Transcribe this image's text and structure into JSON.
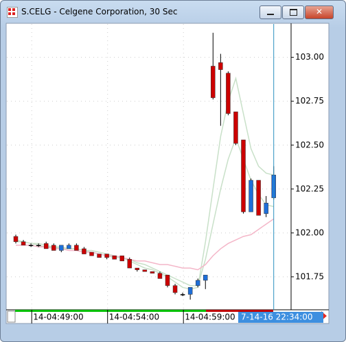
{
  "chart_data": {
    "type": "candlestick",
    "title": "S.CELG - Celgene Corporation, 30 Sec",
    "categories": [
      null,
      null,
      null,
      null,
      null,
      null,
      null,
      null,
      null,
      null,
      null,
      null,
      null,
      null,
      null,
      null,
      null,
      null,
      null,
      null,
      null,
      null,
      null,
      null,
      null,
      null,
      null,
      null,
      null,
      null,
      null,
      null,
      null,
      null,
      null
    ],
    "open": [
      101.98,
      101.95,
      101.93,
      101.93,
      101.94,
      101.93,
      101.9,
      101.91,
      101.93,
      101.91,
      101.89,
      101.88,
      101.88,
      101.87,
      101.87,
      101.85,
      101.8,
      101.79,
      101.78,
      101.77,
      101.76,
      101.7,
      101.65,
      101.65,
      101.7,
      101.73,
      102.95,
      102.97,
      102.91,
      102.69,
      102.53,
      102.12,
      102.3,
      102.11,
      102.2
    ],
    "high": [
      101.99,
      101.96,
      101.94,
      101.94,
      101.95,
      101.94,
      101.93,
      101.94,
      101.94,
      101.92,
      101.89,
      101.88,
      101.88,
      101.87,
      101.87,
      101.86,
      101.8,
      101.79,
      101.78,
      101.78,
      101.76,
      101.71,
      101.66,
      101.69,
      101.74,
      101.76,
      103.14,
      103.02,
      102.92,
      102.69,
      102.53,
      102.31,
      102.3,
      102.21,
      102.38
    ],
    "low": [
      101.94,
      101.93,
      101.92,
      101.92,
      101.91,
      101.9,
      101.89,
      101.91,
      101.9,
      101.88,
      101.87,
      101.86,
      101.85,
      101.85,
      101.84,
      101.8,
      101.78,
      101.78,
      101.77,
      101.74,
      101.69,
      101.65,
      101.64,
      101.62,
      101.69,
      101.68,
      102.76,
      102.61,
      102.67,
      102.5,
      102.11,
      102.12,
      102.1,
      102.09,
      102.19
    ],
    "close": [
      101.95,
      101.93,
      101.93,
      101.93,
      101.91,
      101.9,
      101.93,
      101.93,
      101.9,
      101.88,
      101.87,
      101.86,
      101.86,
      101.85,
      101.84,
      101.8,
      101.79,
      101.78,
      101.77,
      101.74,
      101.7,
      101.66,
      101.65,
      101.69,
      101.73,
      101.76,
      102.77,
      102.93,
      102.68,
      102.51,
      102.12,
      102.3,
      102.1,
      102.17,
      102.33
    ],
    "up_color": "#1e6fd9",
    "down_color": "#cc0000",
    "overlays": [
      {
        "color": "#c8e0c8",
        "values": [
          101.96,
          101.95,
          101.94,
          101.93,
          101.92,
          101.92,
          101.91,
          101.91,
          101.91,
          101.9,
          101.89,
          101.88,
          101.87,
          101.86,
          101.86,
          101.84,
          101.82,
          101.8,
          101.79,
          101.77,
          101.75,
          101.72,
          101.69,
          101.68,
          101.69,
          101.95,
          102.25,
          102.55,
          102.75,
          102.88,
          102.68,
          102.48,
          102.38,
          102.34,
          102.33
        ]
      },
      {
        "color": "#c8e0c8",
        "values": [
          101.95,
          101.95,
          101.94,
          101.94,
          101.93,
          101.92,
          101.92,
          101.91,
          101.91,
          101.9,
          101.9,
          101.89,
          101.88,
          101.87,
          101.86,
          101.85,
          101.83,
          101.82,
          101.8,
          101.78,
          101.76,
          101.74,
          101.72,
          101.7,
          101.7,
          101.85,
          102.05,
          102.25,
          102.42,
          102.54,
          102.42,
          102.3,
          102.22,
          102.16,
          102.15
        ]
      },
      {
        "color": "#f4b6c8",
        "values": [
          101.93,
          101.93,
          101.93,
          101.92,
          101.92,
          101.91,
          101.91,
          101.9,
          101.9,
          101.89,
          101.89,
          101.88,
          101.87,
          101.87,
          101.86,
          101.85,
          101.84,
          101.84,
          101.83,
          101.82,
          101.82,
          101.81,
          101.8,
          101.8,
          101.79,
          101.82,
          101.87,
          101.91,
          101.94,
          101.96,
          101.98,
          101.99,
          102.02,
          102.05,
          102.08
        ]
      }
    ],
    "ylim": [
      101.57,
      103.19
    ],
    "yticks": [
      {
        "value": 101.75,
        "label": "101.75"
      },
      {
        "value": 102,
        "label": "102.00"
      },
      {
        "value": 102.25,
        "label": "102.25"
      },
      {
        "value": 102.5,
        "label": "102.50"
      },
      {
        "value": 102.75,
        "label": "102.75"
      },
      {
        "value": 103,
        "label": "103.00"
      }
    ],
    "xticks": [
      {
        "value": 4,
        "label": "14-04:49:00"
      },
      {
        "value": 14,
        "label": "14-04:54:00"
      },
      {
        "value": 24,
        "label": "14-04:59:00"
      }
    ],
    "grid": true,
    "cursor_label": "7-14-16 22:34:00"
  }
}
